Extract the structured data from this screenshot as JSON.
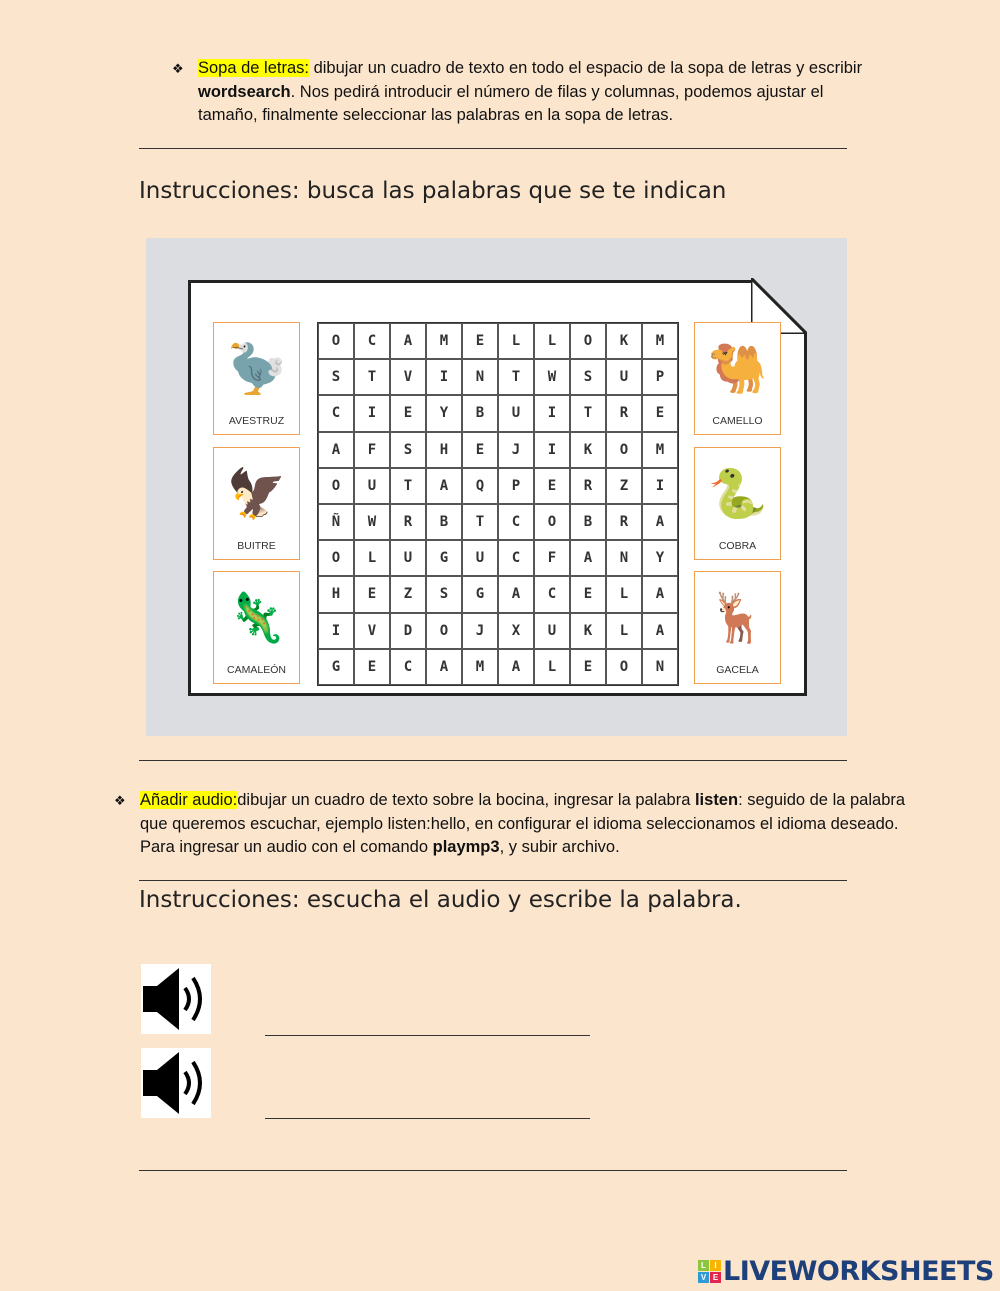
{
  "section1": {
    "highlight": "Sopa de letras:",
    "text_a": " dibujar un cuadro de texto en todo el espacio de la sopa de letras y escribir ",
    "bold": "wordsearch",
    "text_b": ". Nos pedirá introducir el número de filas y columnas, podemos ajustar el tamaño, finalmente seleccionar las palabras en la sopa de letras."
  },
  "heading1": "Instrucciones: busca las palabras que se te indican",
  "wordsearch": {
    "rows": [
      [
        "O",
        "C",
        "A",
        "M",
        "E",
        "L",
        "L",
        "O",
        "K",
        "M"
      ],
      [
        "S",
        "T",
        "V",
        "I",
        "N",
        "T",
        "W",
        "S",
        "U",
        "P"
      ],
      [
        "C",
        "I",
        "E",
        "Y",
        "B",
        "U",
        "I",
        "T",
        "R",
        "E"
      ],
      [
        "A",
        "F",
        "S",
        "H",
        "E",
        "J",
        "I",
        "K",
        "O",
        "M"
      ],
      [
        "O",
        "U",
        "T",
        "A",
        "Q",
        "P",
        "E",
        "R",
        "Z",
        "I"
      ],
      [
        "Ñ",
        "W",
        "R",
        "B",
        "T",
        "C",
        "O",
        "B",
        "R",
        "A"
      ],
      [
        "O",
        "L",
        "U",
        "G",
        "U",
        "C",
        "F",
        "A",
        "N",
        "Y"
      ],
      [
        "H",
        "E",
        "Z",
        "S",
        "G",
        "A",
        "C",
        "E",
        "L",
        "A"
      ],
      [
        "I",
        "V",
        "D",
        "O",
        "J",
        "X",
        "U",
        "K",
        "L",
        "A"
      ],
      [
        "G",
        "E",
        "C",
        "A",
        "M",
        "A",
        "L",
        "E",
        "O",
        "N"
      ]
    ],
    "left_cards": [
      {
        "label": "AVESTRUZ",
        "icon": "ostrich-icon"
      },
      {
        "label": "BUITRE",
        "icon": "vulture-icon"
      },
      {
        "label": "CAMALEÓN",
        "icon": "chameleon-icon"
      }
    ],
    "right_cards": [
      {
        "label": "CAMELLO",
        "icon": "camel-icon"
      },
      {
        "label": "COBRA",
        "icon": "cobra-icon"
      },
      {
        "label": "GACELA",
        "icon": "gazelle-icon"
      }
    ]
  },
  "section2": {
    "highlight": "Añadir audio:",
    "text_a": "dibujar un cuadro de texto sobre la bocina, ingresar la palabra ",
    "bold1": "listen",
    "text_b": ": seguido de la palabra que queremos escuchar, ejemplo listen:hello, en configurar el idioma seleccionamos el idioma deseado. Para ingresar un audio con el comando ",
    "bold2": "playmp3",
    "text_c": ", y subir archivo."
  },
  "heading2": "Instrucciones: escucha el audio y escribe la palabra.",
  "logo": {
    "text": "LIVEWORKSHEETS",
    "tiles": [
      "L",
      "I",
      "V",
      "E"
    ]
  },
  "colors": {
    "background": "#fce5cd",
    "highlight": "#ffff00",
    "card_border": "#f0a050",
    "logo": "#1d3f7a"
  }
}
